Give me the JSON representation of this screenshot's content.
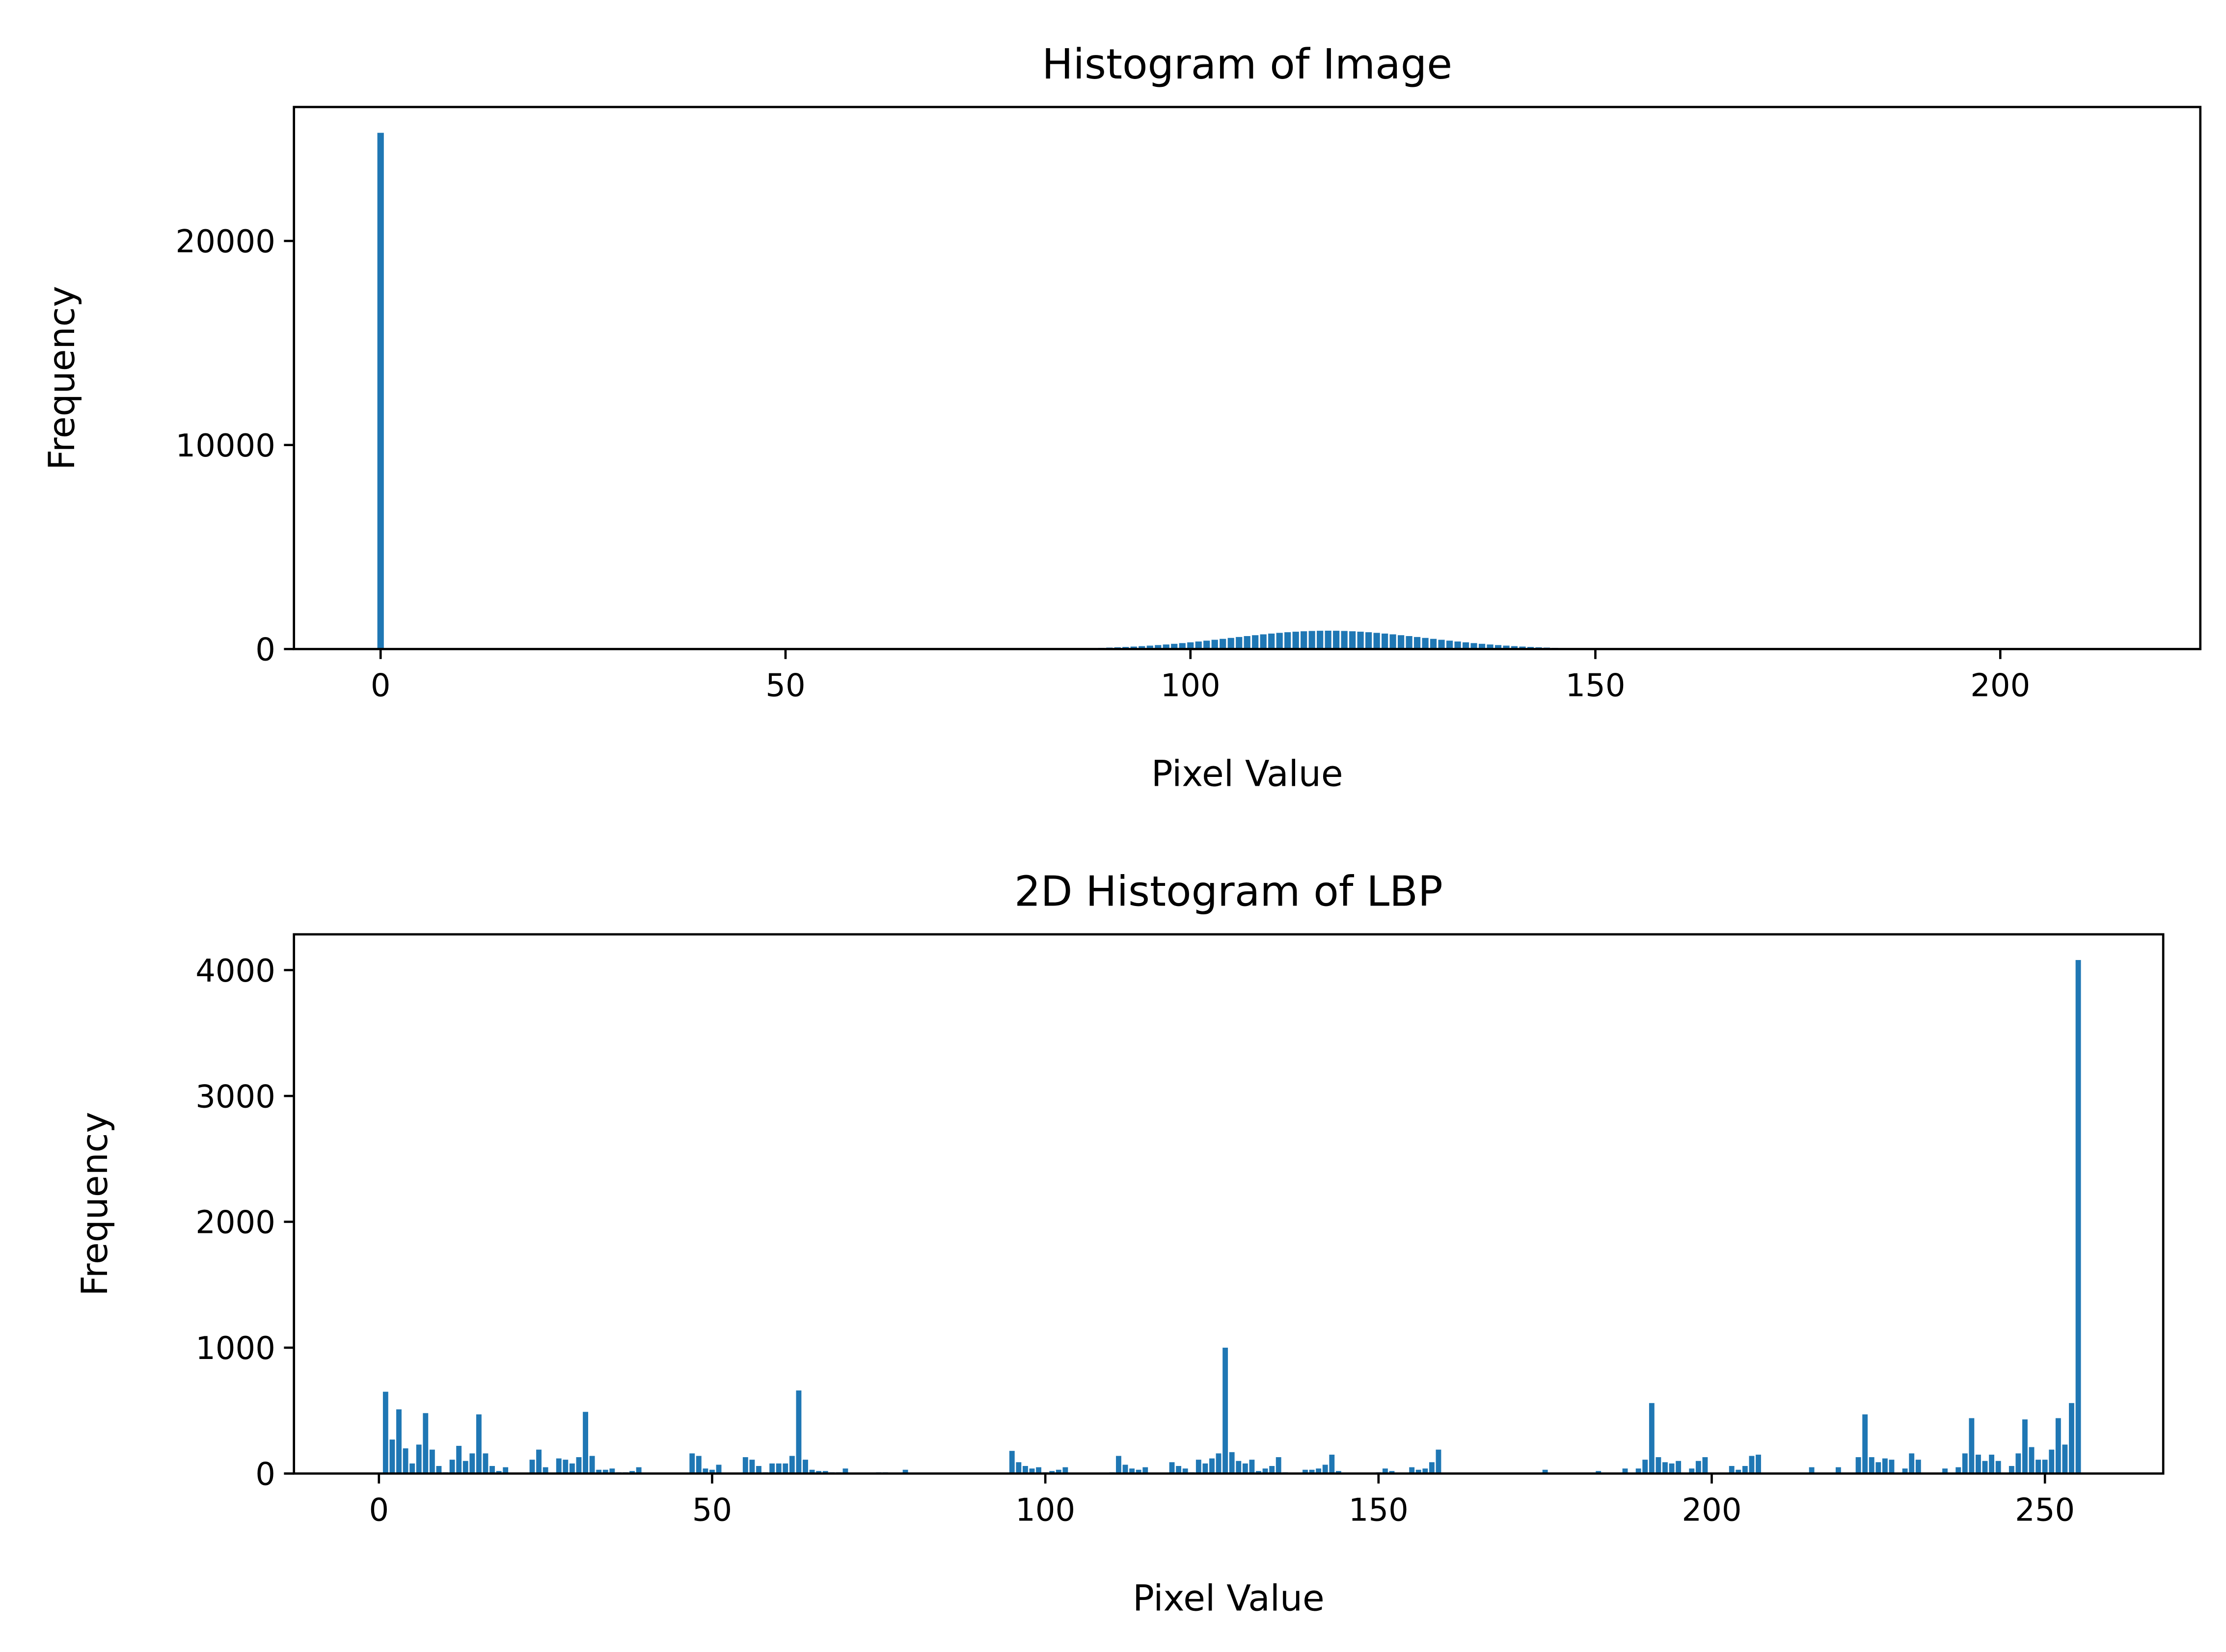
{
  "chart_data": [
    {
      "type": "bar",
      "title": "Histogram of Image",
      "xlabel": "Pixel Value",
      "ylabel": "Frequency",
      "color": "#1f77b4",
      "x": [
        0,
        1,
        2,
        3,
        4,
        5,
        6,
        7,
        8,
        9,
        10,
        11,
        12,
        13,
        14,
        15,
        16,
        17,
        18,
        19,
        20,
        21,
        22,
        23,
        24,
        25,
        26,
        27,
        28,
        29,
        30,
        31,
        32,
        33,
        34,
        35,
        36,
        37,
        38,
        39,
        40,
        41,
        42,
        43,
        44,
        45,
        46,
        47,
        48,
        49,
        50,
        51,
        52,
        53,
        54,
        55,
        56,
        57,
        58,
        59,
        60,
        61,
        62,
        63,
        64,
        65,
        66,
        67,
        68,
        69,
        70,
        71,
        72,
        73,
        74,
        75,
        76,
        77,
        78,
        79,
        80,
        81,
        82,
        83,
        84,
        85,
        86,
        87,
        88,
        89,
        90,
        91,
        92,
        93,
        94,
        95,
        96,
        97,
        98,
        99,
        100,
        101,
        102,
        103,
        104,
        105,
        106,
        107,
        108,
        109,
        110,
        111,
        112,
        113,
        114,
        115,
        116,
        117,
        118,
        119,
        120,
        121,
        122,
        123,
        124,
        125,
        126,
        127,
        128,
        129,
        130,
        131,
        132,
        133,
        134,
        135,
        136,
        137,
        138,
        139,
        140,
        141,
        142,
        143,
        144,
        145,
        146,
        147,
        148,
        149,
        150,
        151,
        152,
        153,
        154,
        155,
        156,
        157,
        158,
        159,
        160,
        161,
        162,
        163,
        164,
        165,
        166,
        167,
        168,
        169,
        170,
        171,
        172,
        173,
        174,
        175,
        176,
        177,
        178,
        179,
        180,
        181,
        182,
        183,
        184,
        185,
        186,
        187,
        188,
        189,
        190,
        191,
        192,
        193,
        194,
        195,
        196,
        197,
        198,
        199,
        200,
        201,
        202,
        203,
        204,
        205,
        206,
        207,
        208,
        209,
        210,
        211,
        212,
        213,
        214
      ],
      "values": [
        25300,
        0,
        0,
        0,
        0,
        0,
        0,
        0,
        0,
        0,
        0,
        0,
        0,
        0,
        0,
        0,
        0,
        0,
        0,
        0,
        0,
        0,
        0,
        0,
        0,
        0,
        0,
        0,
        0,
        0,
        0,
        0,
        0,
        0,
        0,
        0,
        0,
        0,
        0,
        0,
        0,
        0,
        0,
        0,
        0,
        0,
        0,
        0,
        0,
        0,
        0,
        0,
        0,
        0,
        0,
        0,
        0,
        0,
        0,
        0,
        0,
        0,
        0,
        0,
        0,
        0,
        0,
        0,
        0,
        0,
        0,
        0,
        0,
        0,
        0,
        0,
        0,
        0,
        0,
        0,
        0,
        0,
        0,
        0,
        0,
        25,
        32,
        40,
        49,
        59,
        72,
        86,
        103,
        122,
        143,
        168,
        195,
        224,
        257,
        292,
        330,
        370,
        412,
        455,
        500,
        546,
        591,
        636,
        679,
        721,
        759,
        794,
        825,
        851,
        872,
        887,
        897,
        900,
        897,
        887,
        872,
        851,
        825,
        794,
        759,
        721,
        679,
        636,
        591,
        546,
        500,
        455,
        412,
        370,
        330,
        292,
        257,
        224,
        195,
        168,
        143,
        122,
        103,
        86,
        72,
        59,
        49,
        40,
        32,
        25,
        0,
        0,
        0,
        0,
        0,
        0,
        0,
        0,
        0,
        0,
        0,
        0,
        0,
        0,
        0,
        0,
        0,
        0,
        0,
        0,
        0,
        0,
        0,
        0,
        0,
        0,
        0,
        0,
        0,
        0,
        0,
        0,
        0,
        0,
        0,
        0,
        0,
        0,
        0,
        0,
        0,
        0,
        0,
        0,
        0,
        0,
        0,
        0,
        0,
        0,
        0,
        0,
        0,
        0,
        0,
        0,
        0,
        0,
        0,
        0,
        0,
        0,
        0,
        0,
        0
      ],
      "xlim": [
        -10.7,
        224.7
      ],
      "ylim": [
        0,
        26565
      ],
      "xticks": [
        0,
        50,
        100,
        150,
        200
      ],
      "yticks": [
        0,
        10000,
        20000
      ]
    },
    {
      "type": "bar",
      "title": "2D Histogram of LBP",
      "xlabel": "Pixel Value",
      "ylabel": "Frequency",
      "color": "#1f77b4",
      "x": [
        0,
        1,
        2,
        3,
        4,
        5,
        6,
        7,
        8,
        9,
        10,
        11,
        12,
        13,
        14,
        15,
        16,
        17,
        18,
        19,
        20,
        21,
        22,
        23,
        24,
        25,
        26,
        27,
        28,
        29,
        30,
        31,
        32,
        33,
        34,
        35,
        36,
        37,
        38,
        39,
        40,
        41,
        42,
        43,
        44,
        45,
        46,
        47,
        48,
        49,
        50,
        51,
        52,
        53,
        54,
        55,
        56,
        57,
        58,
        59,
        60,
        61,
        62,
        63,
        64,
        65,
        66,
        67,
        68,
        69,
        70,
        71,
        72,
        73,
        74,
        75,
        76,
        77,
        78,
        79,
        80,
        81,
        82,
        83,
        84,
        85,
        86,
        87,
        88,
        89,
        90,
        91,
        92,
        93,
        94,
        95,
        96,
        97,
        98,
        99,
        100,
        101,
        102,
        103,
        104,
        105,
        106,
        107,
        108,
        109,
        110,
        111,
        112,
        113,
        114,
        115,
        116,
        117,
        118,
        119,
        120,
        121,
        122,
        123,
        124,
        125,
        126,
        127,
        128,
        129,
        130,
        131,
        132,
        133,
        134,
        135,
        136,
        137,
        138,
        139,
        140,
        141,
        142,
        143,
        144,
        145,
        146,
        147,
        148,
        149,
        150,
        151,
        152,
        153,
        154,
        155,
        156,
        157,
        158,
        159,
        160,
        161,
        162,
        163,
        164,
        165,
        166,
        167,
        168,
        169,
        170,
        171,
        172,
        173,
        174,
        175,
        176,
        177,
        178,
        179,
        180,
        181,
        182,
        183,
        184,
        185,
        186,
        187,
        188,
        189,
        190,
        191,
        192,
        193,
        194,
        195,
        196,
        197,
        198,
        199,
        200,
        201,
        202,
        203,
        204,
        205,
        206,
        207,
        208,
        209,
        210,
        211,
        212,
        213,
        214,
        215,
        216,
        217,
        218,
        219,
        220,
        221,
        222,
        223,
        224,
        225,
        226,
        227,
        228,
        229,
        230,
        231,
        232,
        233,
        234,
        235,
        236,
        237,
        238,
        239,
        240,
        241,
        242,
        243,
        244,
        245,
        246,
        247,
        248,
        249,
        250,
        251,
        252,
        253,
        254,
        255
      ],
      "values": [
        0,
        650,
        270,
        510,
        200,
        80,
        230,
        480,
        190,
        60,
        10,
        110,
        220,
        100,
        160,
        470,
        160,
        60,
        20,
        50,
        5,
        5,
        5,
        110,
        190,
        50,
        5,
        120,
        110,
        80,
        130,
        490,
        140,
        30,
        30,
        40,
        10,
        10,
        20,
        50,
        5,
        5,
        5,
        5,
        5,
        5,
        5,
        160,
        140,
        40,
        30,
        70,
        5,
        5,
        5,
        130,
        110,
        60,
        10,
        80,
        80,
        80,
        140,
        660,
        110,
        30,
        20,
        20,
        10,
        10,
        40,
        5,
        5,
        5,
        5,
        10,
        10,
        5,
        5,
        30,
        5,
        5,
        5,
        5,
        5,
        5,
        5,
        5,
        5,
        5,
        5,
        5,
        5,
        5,
        5,
        180,
        90,
        60,
        40,
        50,
        10,
        20,
        30,
        50,
        5,
        5,
        5,
        5,
        5,
        5,
        10,
        140,
        70,
        40,
        30,
        50,
        5,
        5,
        5,
        90,
        60,
        40,
        10,
        110,
        80,
        120,
        160,
        1000,
        170,
        100,
        80,
        110,
        20,
        40,
        60,
        130,
        10,
        5,
        5,
        30,
        30,
        40,
        70,
        150,
        20,
        5,
        5,
        5,
        5,
        5,
        10,
        40,
        20,
        5,
        5,
        50,
        30,
        40,
        90,
        190,
        5,
        5,
        5,
        5,
        5,
        5,
        5,
        5,
        5,
        5,
        5,
        5,
        5,
        5,
        5,
        30,
        5,
        5,
        5,
        5,
        5,
        5,
        5,
        20,
        5,
        5,
        5,
        40,
        5,
        40,
        110,
        560,
        130,
        90,
        80,
        100,
        5,
        40,
        100,
        130,
        5,
        5,
        5,
        60,
        30,
        60,
        140,
        150,
        5,
        5,
        5,
        5,
        5,
        5,
        5,
        50,
        5,
        5,
        5,
        50,
        5,
        5,
        130,
        470,
        130,
        90,
        120,
        110,
        5,
        40,
        160,
        110,
        5,
        5,
        5,
        40,
        5,
        50,
        160,
        440,
        150,
        100,
        150,
        100,
        5,
        60,
        160,
        430,
        210,
        110,
        110,
        190,
        440,
        230,
        560,
        4080
      ],
      "xlim": [
        -12.75,
        267.75
      ],
      "ylim": [
        0,
        4284
      ],
      "xticks": [
        0,
        50,
        100,
        150,
        200,
        250
      ],
      "yticks": [
        0,
        1000,
        2000,
        3000,
        4000
      ]
    }
  ]
}
